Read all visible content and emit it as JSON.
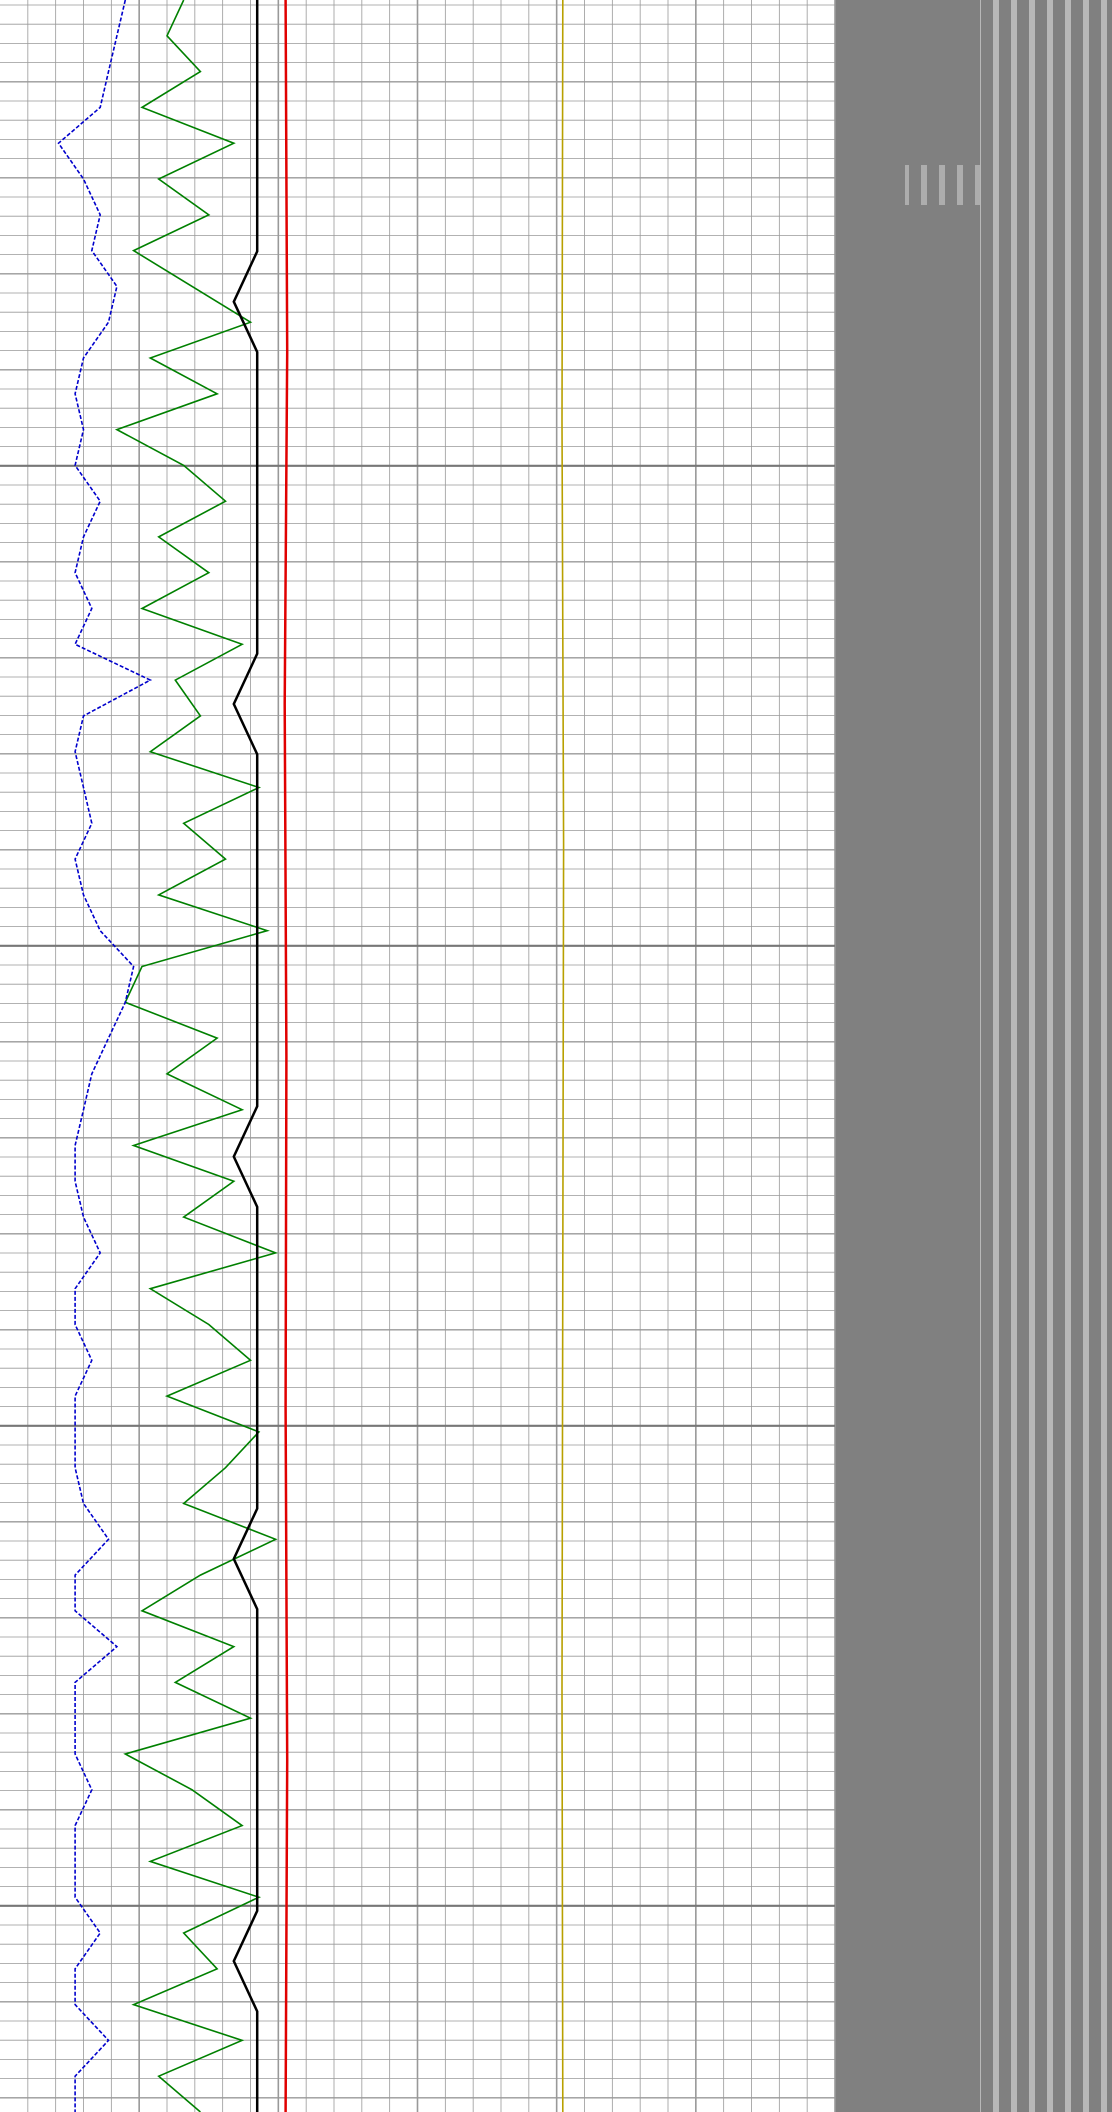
{
  "chart_data": {
    "type": "well-log",
    "xlim": [
      0,
      100
    ],
    "grid": true,
    "series": [
      {
        "color": "#008000",
        "values": [
          22,
          20,
          24,
          17,
          28,
          19,
          25,
          16,
          23,
          30,
          18,
          26,
          14,
          22,
          27,
          19,
          25,
          17,
          29,
          21,
          24,
          18,
          31,
          22,
          27,
          19,
          32,
          17,
          15,
          26,
          20,
          29,
          16,
          28,
          22,
          33,
          18,
          25,
          30,
          20,
          31,
          27,
          22,
          33,
          24,
          17,
          28,
          21,
          30,
          15,
          23,
          29,
          18,
          31,
          22,
          26,
          16,
          29,
          19,
          24
        ]
      },
      {
        "color": "#0000cc",
        "values": [
          15,
          14,
          13,
          12,
          7,
          10,
          12,
          11,
          14,
          13,
          10,
          9,
          10,
          9,
          12,
          10,
          9,
          11,
          9,
          18,
          10,
          9,
          10,
          11,
          9,
          10,
          12,
          16,
          15,
          13,
          11,
          10,
          9,
          9,
          10,
          12,
          9,
          9,
          11,
          9,
          9,
          9,
          10,
          13,
          9,
          9,
          14,
          9,
          9,
          9,
          11,
          9,
          9,
          9,
          12,
          9,
          9,
          13,
          9,
          9
        ]
      },
      {
        "color": "#000000",
        "values": [
          30.8,
          30.8,
          30.8,
          30.8,
          30.8,
          30.8,
          28,
          30.8,
          30.8,
          30.8,
          30.8,
          30.8,
          30.8,
          30.8,
          28,
          30.8,
          30.8,
          30.8,
          30.8,
          30.8,
          30.8,
          30.8,
          30.8,
          28,
          30.8,
          30.8,
          30.8,
          30.8,
          30.8,
          30.8,
          30.8,
          28,
          30.8,
          30.8,
          30.8,
          30.8,
          30.8,
          30.8,
          30.8,
          28,
          30.8,
          30.8,
          30.8
        ]
      },
      {
        "color": "#e00000",
        "values": [
          34.2,
          34.4,
          34.1,
          34.3,
          34.2,
          34.4,
          34.2
        ]
      },
      {
        "color": "#b8a000",
        "values": [
          67.4,
          67.3,
          67.5,
          67.4,
          67.3,
          67.4
        ]
      }
    ]
  }
}
